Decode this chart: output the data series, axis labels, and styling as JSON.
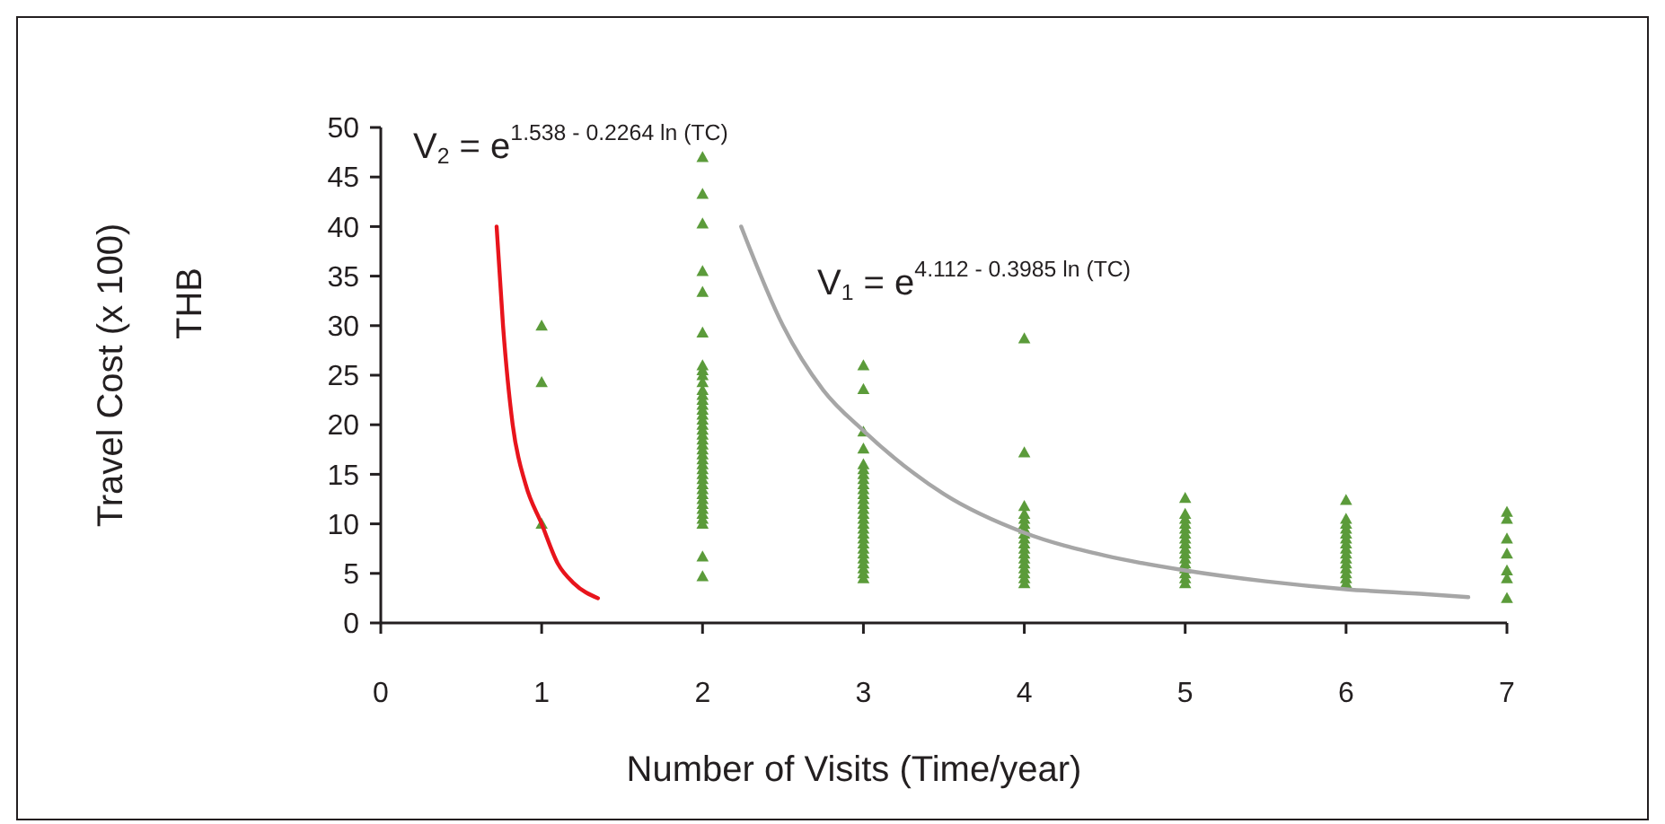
{
  "chart_data": {
    "type": "scatter",
    "xlabel": "Number of Visits (Time/year)",
    "ylabel": "Travel Cost (x 100)\nTHB",
    "xlim": [
      0,
      7
    ],
    "xticks": [
      0,
      1,
      2,
      3,
      4,
      5,
      6,
      7
    ],
    "ylim": [
      0,
      50
    ],
    "yticks": [
      0,
      5,
      10,
      15,
      20,
      25,
      30,
      35,
      40,
      45,
      50
    ],
    "marker": "triangle",
    "annotations": [
      "V$_{2}$ = e$^{1.538 - 0.2264 ln (TC)}$",
      "V$_{1}$ = e$^{4.112 - 0.3985 ln (TC)}$"
    ],
    "series": [
      {
        "color": "#5b9b3a",
        "x": [
          1,
          1,
          1,
          2,
          2,
          2,
          2,
          2,
          2,
          2,
          2,
          2,
          2,
          2,
          2,
          2,
          2,
          2,
          2,
          2,
          2,
          2,
          2,
          2,
          2,
          2,
          2,
          2,
          2,
          2,
          2,
          2,
          2,
          2,
          2,
          2,
          2,
          2,
          2,
          2,
          2,
          2,
          2,
          3,
          3,
          3,
          3,
          3,
          3,
          3,
          3,
          3,
          3,
          3,
          3,
          3,
          3,
          3,
          3,
          3,
          3,
          3,
          3,
          3,
          3,
          3,
          3,
          3,
          3,
          3,
          3,
          4,
          4,
          4,
          4,
          4,
          4,
          4,
          4,
          4,
          4,
          4,
          4,
          4,
          4,
          4,
          4,
          4,
          4,
          5,
          5,
          5,
          5,
          5,
          5,
          5,
          5,
          5,
          5,
          5,
          5,
          5,
          5,
          5,
          5,
          6,
          6,
          6,
          6,
          6,
          6,
          6,
          6,
          6,
          6,
          6,
          6,
          6,
          6,
          6,
          7,
          7,
          7,
          7,
          7,
          7,
          7
        ],
        "values": [
          30,
          24.3,
          10,
          47,
          43.3,
          40.3,
          35.5,
          33.4,
          29.3,
          26,
          25.5,
          25,
          24.3,
          23.5,
          23,
          22.5,
          22,
          21.5,
          21,
          20.5,
          20,
          19.5,
          19,
          18.5,
          18,
          17.5,
          17,
          16.5,
          16,
          15.5,
          15,
          14.5,
          14,
          13.5,
          13,
          12.5,
          12,
          11.5,
          11,
          10.5,
          10,
          6.7,
          4.7,
          26,
          23.6,
          19.3,
          17.6,
          16,
          15.5,
          15,
          14.5,
          14,
          13.5,
          13,
          12.5,
          12,
          11.5,
          11,
          10.5,
          10,
          9.5,
          9,
          8.5,
          8,
          7.5,
          7,
          6.5,
          6,
          5.5,
          5,
          4.5,
          28.7,
          17.2,
          11.8,
          11,
          10.5,
          10,
          9.5,
          9,
          8.5,
          8,
          7.5,
          7,
          6.5,
          6,
          5.5,
          5,
          4.5,
          4,
          12.6,
          11,
          10.5,
          10,
          9.5,
          9,
          8.5,
          8,
          7.5,
          7,
          6.5,
          6,
          5.5,
          5,
          4.5,
          4,
          12.4,
          10.5,
          10,
          9.5,
          9,
          8.5,
          8,
          7.5,
          7,
          6.5,
          6,
          5.5,
          5,
          4.5,
          4,
          11.2,
          10.5,
          8.5,
          7,
          5.3,
          4.5,
          2.5
        ]
      },
      {
        "type": "line",
        "color": "#e8141c",
        "marker": "none",
        "x": [
          0.72,
          0.76,
          0.82,
          0.9,
          1.0,
          1.1,
          1.2,
          1.35
        ],
        "values": [
          40,
          30,
          20,
          14,
          10,
          6,
          4,
          2.5
        ]
      },
      {
        "type": "line",
        "color": "#a6a6a6",
        "marker": "none",
        "x": [
          2.24,
          2.5,
          2.75,
          3,
          3.5,
          4,
          4.5,
          5,
          5.5,
          6,
          6.5,
          6.76
        ],
        "values": [
          40,
          30,
          23.5,
          19.4,
          13,
          9.1,
          6.8,
          5.3,
          4.2,
          3.4,
          2.9,
          2.6
        ]
      }
    ]
  }
}
